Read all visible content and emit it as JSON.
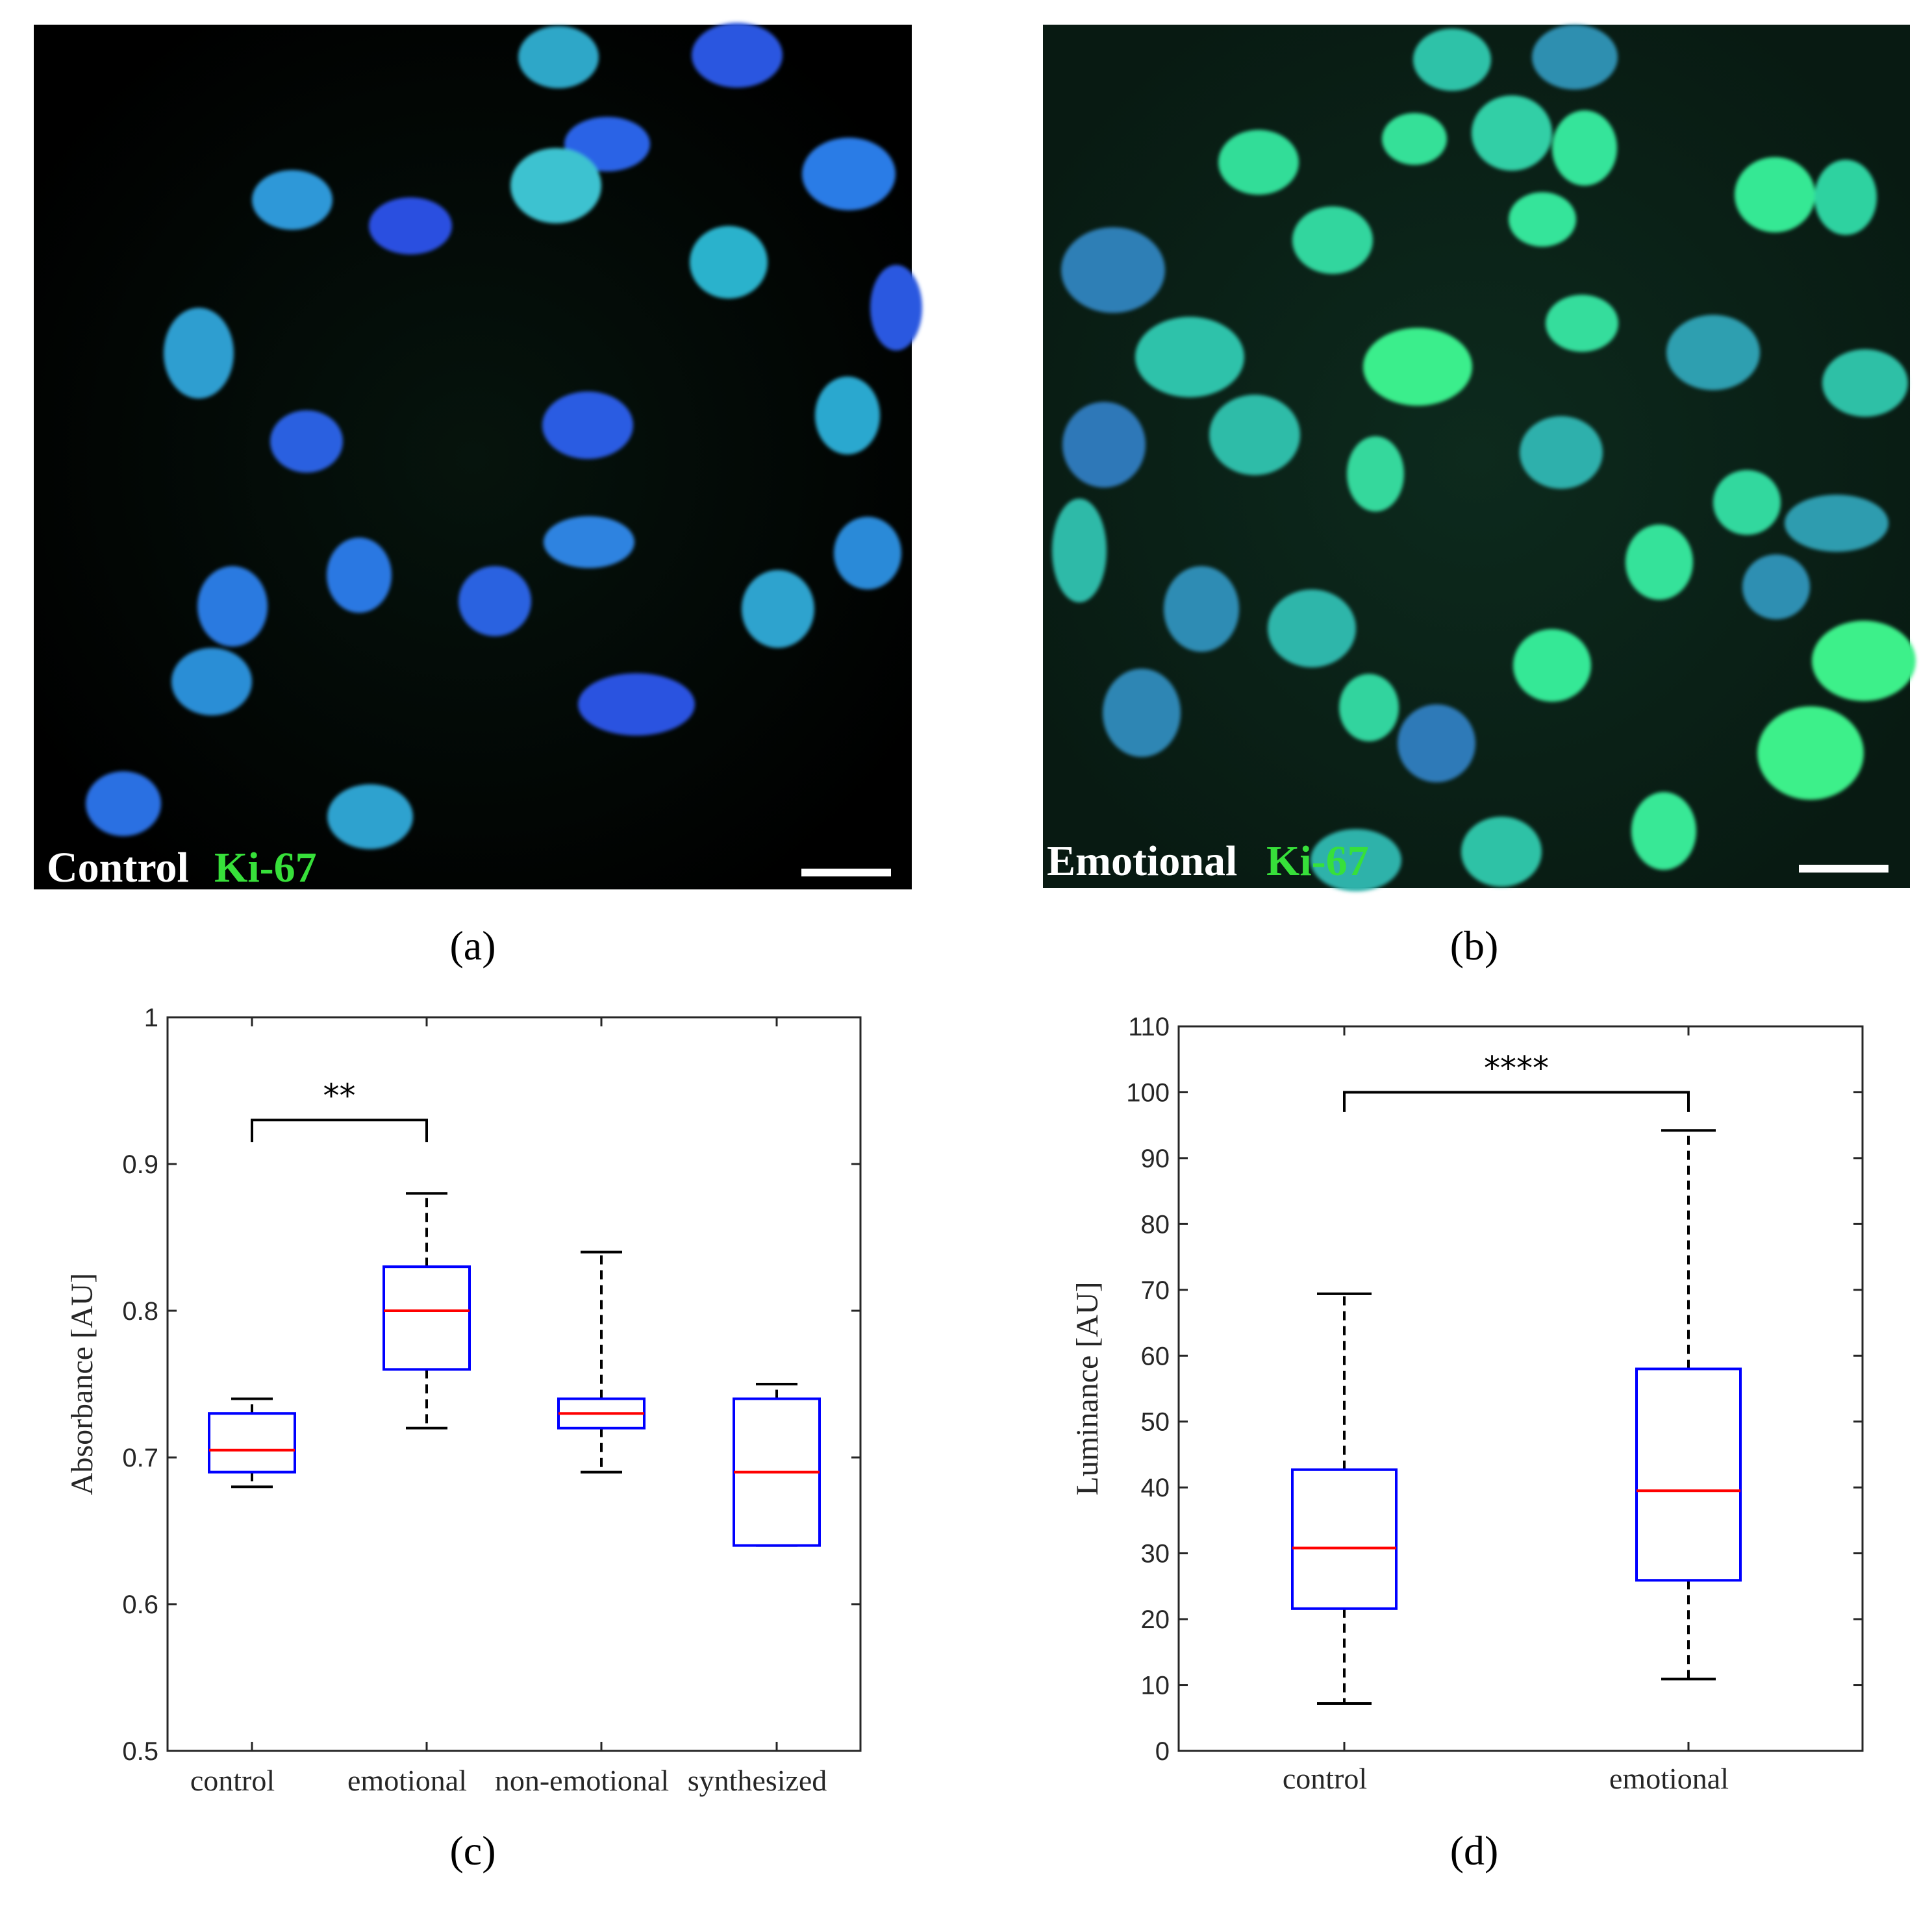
{
  "panels": {
    "a": {
      "letter": "(a)",
      "label_main": "Control",
      "label_marker": "Ki-67"
    },
    "b": {
      "letter": "(b)",
      "label_main": "Emotional",
      "label_marker": "Ki-67"
    },
    "c": {
      "letter": "(c)"
    },
    "d": {
      "letter": "(d)"
    }
  },
  "colors": {
    "nucleus_blue": "#2a56e0",
    "ki67_green": "#33ee88",
    "label_white": "#ffffff",
    "label_green": "#37e03a",
    "box_edge": "#0000ff",
    "median": "#ff0000",
    "whisker": "#000000"
  },
  "chart_data": [
    {
      "type": "box",
      "panel": "(c)",
      "title": "",
      "xlabel": "",
      "ylabel": "Absorbance [AU]",
      "ylim": [
        0.5,
        1
      ],
      "yticks": [
        "0.5",
        "0.6",
        "0.7",
        "0.8",
        "0.9",
        "1"
      ],
      "categories": [
        "control",
        "emotional",
        "non-emotional",
        "synthesized"
      ],
      "boxes": [
        {
          "category": "control",
          "whisker_low": 0.68,
          "q1": 0.69,
          "median": 0.705,
          "q3": 0.73,
          "whisker_high": 0.74
        },
        {
          "category": "emotional",
          "whisker_low": 0.72,
          "q1": 0.76,
          "median": 0.8,
          "q3": 0.83,
          "whisker_high": 0.88
        },
        {
          "category": "non-emotional",
          "whisker_low": 0.69,
          "q1": 0.72,
          "median": 0.73,
          "q3": 0.74,
          "whisker_high": 0.84
        },
        {
          "category": "synthesized",
          "whisker_low": 0.64,
          "q1": 0.64,
          "median": 0.69,
          "q3": 0.74,
          "whisker_high": 0.75
        }
      ],
      "significance": {
        "from": 0,
        "to": 1,
        "label": "**",
        "y": 0.93,
        "leg_bottom": 0.915
      },
      "grid": false
    },
    {
      "type": "box",
      "panel": "(d)",
      "title": "",
      "xlabel": "",
      "ylabel": "Luminance [AU]",
      "ylim": [
        0,
        110
      ],
      "yticks": [
        "0",
        "10",
        "20",
        "30",
        "40",
        "50",
        "60",
        "70",
        "80",
        "90",
        "100",
        "110"
      ],
      "categories": [
        "control",
        "emotional"
      ],
      "boxes": [
        {
          "category": "control",
          "whisker_low": 7.2,
          "q1": 21.6,
          "median": 30.8,
          "q3": 42.7,
          "whisker_high": 69.4
        },
        {
          "category": "emotional",
          "whisker_low": 10.9,
          "q1": 25.9,
          "median": 39.5,
          "q3": 58.0,
          "whisker_high": 94.2
        }
      ],
      "significance": {
        "from": 0,
        "to": 1,
        "label": "****",
        "y": 100,
        "leg_bottom": 97
      },
      "grid": false
    }
  ]
}
